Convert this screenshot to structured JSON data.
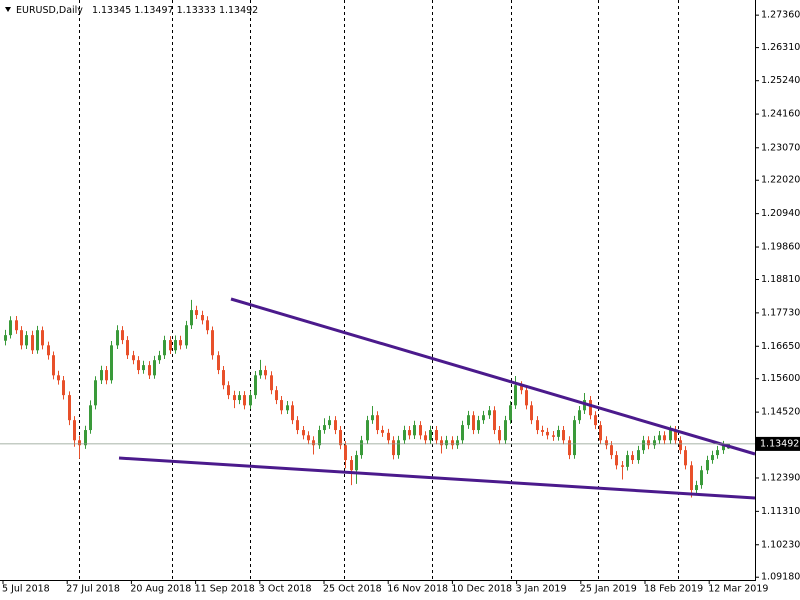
{
  "chart_data": {
    "type": "candlestick",
    "title": "EURUSD,Daily",
    "bull_color": "#3a9a3a",
    "bear_color": "#e8502a",
    "ylim": [
      1.0909,
      1.2785
    ],
    "yticks": [
      {
        "value": 1.2736,
        "label": "1.27360"
      },
      {
        "value": 1.2631,
        "label": "1.26310"
      },
      {
        "value": 1.2524,
        "label": "1.25240"
      },
      {
        "value": 1.2416,
        "label": "1.24160"
      },
      {
        "value": 1.2307,
        "label": "1.23070"
      },
      {
        "value": 1.2202,
        "label": "1.22020"
      },
      {
        "value": 1.2094,
        "label": "1.20940"
      },
      {
        "value": 1.1986,
        "label": "1.19860"
      },
      {
        "value": 1.1881,
        "label": "1.18810"
      },
      {
        "value": 1.1773,
        "label": "1.17730"
      },
      {
        "value": 1.1665,
        "label": "1.16650"
      },
      {
        "value": 1.156,
        "label": "1.15600"
      },
      {
        "value": 1.1452,
        "label": "1.14520"
      },
      {
        "value": 1.1239,
        "label": "1.12390"
      },
      {
        "value": 1.1131,
        "label": "1.11310"
      },
      {
        "value": 1.1023,
        "label": "1.10230"
      },
      {
        "value": 1.0918,
        "label": "1.09180"
      }
    ],
    "xlabels": [
      "5 Jul 2018",
      "27 Jul 2018",
      "20 Aug 2018",
      "11 Sep 2018",
      "3 Oct 2018",
      "25 Oct 2018",
      "16 Nov 2018",
      "10 Dec 2018",
      "3 Jan 2019",
      "25 Jan 2019",
      "18 Feb 2019",
      "12 Mar 2019"
    ],
    "ohlc": [
      [
        1.1683,
        1.1718,
        1.1668,
        1.1701
      ],
      [
        1.1701,
        1.1762,
        1.169,
        1.1749
      ],
      [
        1.1749,
        1.1763,
        1.1705,
        1.1717
      ],
      [
        1.1717,
        1.173,
        1.1655,
        1.1668
      ],
      [
        1.1668,
        1.1714,
        1.1656,
        1.1701
      ],
      [
        1.1701,
        1.1715,
        1.164,
        1.1652
      ],
      [
        1.1652,
        1.1731,
        1.1641,
        1.1717
      ],
      [
        1.1717,
        1.1729,
        1.1655,
        1.1668
      ],
      [
        1.1668,
        1.168,
        1.1622,
        1.1636
      ],
      [
        1.1636,
        1.1648,
        1.1558,
        1.1571
      ],
      [
        1.1571,
        1.1586,
        1.1541,
        1.1555
      ],
      [
        1.1555,
        1.1569,
        1.1493,
        1.1507
      ],
      [
        1.1507,
        1.1519,
        1.141,
        1.1426
      ],
      [
        1.1426,
        1.1439,
        1.134,
        1.1361
      ],
      [
        1.1361,
        1.1376,
        1.1301,
        1.1345
      ],
      [
        1.1345,
        1.1408,
        1.1333,
        1.1394
      ],
      [
        1.1394,
        1.149,
        1.1382,
        1.1474
      ],
      [
        1.1474,
        1.1568,
        1.1461,
        1.1555
      ],
      [
        1.1555,
        1.1602,
        1.1543,
        1.1588
      ],
      [
        1.1588,
        1.1601,
        1.1542,
        1.1555
      ],
      [
        1.1555,
        1.1682,
        1.1544,
        1.1668
      ],
      [
        1.1668,
        1.1733,
        1.1656,
        1.1717
      ],
      [
        1.1717,
        1.173,
        1.1672,
        1.1685
      ],
      [
        1.1685,
        1.1698,
        1.1624,
        1.1636
      ],
      [
        1.1636,
        1.165,
        1.1607,
        1.162
      ],
      [
        1.162,
        1.1633,
        1.1575,
        1.1588
      ],
      [
        1.1588,
        1.1618,
        1.1576,
        1.1604
      ],
      [
        1.1604,
        1.1617,
        1.1559,
        1.1571
      ],
      [
        1.1571,
        1.1634,
        1.156,
        1.162
      ],
      [
        1.162,
        1.165,
        1.1608,
        1.1636
      ],
      [
        1.1636,
        1.1699,
        1.1624,
        1.1685
      ],
      [
        1.1685,
        1.1698,
        1.164,
        1.1652
      ],
      [
        1.1652,
        1.17,
        1.1641,
        1.1685
      ],
      [
        1.1685,
        1.1699,
        1.1655,
        1.1668
      ],
      [
        1.1668,
        1.1747,
        1.1657,
        1.1733
      ],
      [
        1.1733,
        1.1815,
        1.1721,
        1.1782
      ],
      [
        1.1782,
        1.1796,
        1.1753,
        1.1766
      ],
      [
        1.1766,
        1.178,
        1.1736,
        1.1749
      ],
      [
        1.1749,
        1.1762,
        1.1704,
        1.1717
      ],
      [
        1.1717,
        1.1729,
        1.1622,
        1.1636
      ],
      [
        1.1636,
        1.1649,
        1.1575,
        1.1588
      ],
      [
        1.1588,
        1.1601,
        1.1526,
        1.1539
      ],
      [
        1.1539,
        1.1552,
        1.1494,
        1.1507
      ],
      [
        1.1507,
        1.1521,
        1.1465,
        1.1491
      ],
      [
        1.1491,
        1.152,
        1.1478,
        1.1507
      ],
      [
        1.1507,
        1.152,
        1.1461,
        1.1474
      ],
      [
        1.1474,
        1.1521,
        1.1462,
        1.1507
      ],
      [
        1.1507,
        1.1585,
        1.1495,
        1.1571
      ],
      [
        1.1571,
        1.1621,
        1.156,
        1.1588
      ],
      [
        1.1588,
        1.1602,
        1.1558,
        1.1571
      ],
      [
        1.1571,
        1.1584,
        1.151,
        1.1523
      ],
      [
        1.1523,
        1.1536,
        1.1478,
        1.1491
      ],
      [
        1.1491,
        1.1504,
        1.1445,
        1.1458
      ],
      [
        1.1458,
        1.1488,
        1.1446,
        1.1474
      ],
      [
        1.1474,
        1.1487,
        1.1413,
        1.1426
      ],
      [
        1.1426,
        1.1439,
        1.1381,
        1.1394
      ],
      [
        1.1394,
        1.1407,
        1.1364,
        1.1377
      ],
      [
        1.1377,
        1.139,
        1.1348,
        1.1361
      ],
      [
        1.1361,
        1.1374,
        1.1315,
        1.1345
      ],
      [
        1.1345,
        1.1408,
        1.1333,
        1.1394
      ],
      [
        1.1394,
        1.1432,
        1.1382,
        1.141
      ],
      [
        1.141,
        1.144,
        1.1398,
        1.1426
      ],
      [
        1.1426,
        1.1439,
        1.1381,
        1.1394
      ],
      [
        1.1394,
        1.1407,
        1.1332,
        1.1345
      ],
      [
        1.1345,
        1.1358,
        1.127,
        1.1297
      ],
      [
        1.1297,
        1.131,
        1.1216,
        1.1264
      ],
      [
        1.1264,
        1.1327,
        1.122,
        1.1313
      ],
      [
        1.1313,
        1.1375,
        1.1301,
        1.1361
      ],
      [
        1.1361,
        1.144,
        1.1349,
        1.1426
      ],
      [
        1.1426,
        1.1472,
        1.1414,
        1.1442
      ],
      [
        1.1442,
        1.1455,
        1.1381,
        1.1394
      ],
      [
        1.1394,
        1.1408,
        1.1372,
        1.1385
      ],
      [
        1.1385,
        1.1398,
        1.1348,
        1.1361
      ],
      [
        1.1361,
        1.1374,
        1.1299,
        1.1313
      ],
      [
        1.1313,
        1.1375,
        1.1301,
        1.1361
      ],
      [
        1.1361,
        1.1408,
        1.1349,
        1.1394
      ],
      [
        1.1394,
        1.1407,
        1.1364,
        1.1377
      ],
      [
        1.1377,
        1.1424,
        1.1365,
        1.141
      ],
      [
        1.141,
        1.1423,
        1.1364,
        1.1377
      ],
      [
        1.1377,
        1.139,
        1.1348,
        1.1361
      ],
      [
        1.1361,
        1.1408,
        1.1349,
        1.1394
      ],
      [
        1.1394,
        1.1407,
        1.1348,
        1.1361
      ],
      [
        1.1361,
        1.1374,
        1.1318,
        1.1345
      ],
      [
        1.1345,
        1.1375,
        1.1333,
        1.1361
      ],
      [
        1.1361,
        1.1374,
        1.1332,
        1.1345
      ],
      [
        1.1345,
        1.1375,
        1.1333,
        1.1361
      ],
      [
        1.1361,
        1.1424,
        1.1349,
        1.141
      ],
      [
        1.141,
        1.1456,
        1.1398,
        1.1442
      ],
      [
        1.1442,
        1.1455,
        1.1381,
        1.1394
      ],
      [
        1.1394,
        1.144,
        1.1382,
        1.1426
      ],
      [
        1.1426,
        1.1456,
        1.1414,
        1.1442
      ],
      [
        1.1442,
        1.1472,
        1.143,
        1.1458
      ],
      [
        1.1458,
        1.1471,
        1.1381,
        1.1394
      ],
      [
        1.1394,
        1.1407,
        1.1348,
        1.1361
      ],
      [
        1.1361,
        1.144,
        1.1349,
        1.1426
      ],
      [
        1.1426,
        1.1488,
        1.1414,
        1.1474
      ],
      [
        1.1474,
        1.1569,
        1.1462,
        1.1539
      ],
      [
        1.1539,
        1.1552,
        1.151,
        1.1523
      ],
      [
        1.1523,
        1.1536,
        1.1461,
        1.1474
      ],
      [
        1.1474,
        1.1487,
        1.1413,
        1.1426
      ],
      [
        1.1426,
        1.1439,
        1.1381,
        1.1394
      ],
      [
        1.1394,
        1.1408,
        1.1375,
        1.1388
      ],
      [
        1.1388,
        1.1401,
        1.1364,
        1.1377
      ],
      [
        1.1377,
        1.1391,
        1.1359,
        1.1372
      ],
      [
        1.1372,
        1.1408,
        1.136,
        1.1394
      ],
      [
        1.1394,
        1.1407,
        1.1348,
        1.1361
      ],
      [
        1.1361,
        1.1374,
        1.13,
        1.1313
      ],
      [
        1.1313,
        1.144,
        1.1301,
        1.1426
      ],
      [
        1.1426,
        1.1472,
        1.1414,
        1.1458
      ],
      [
        1.1458,
        1.1514,
        1.1446,
        1.1491
      ],
      [
        1.1491,
        1.1504,
        1.1429,
        1.1442
      ],
      [
        1.1442,
        1.1455,
        1.1397,
        1.141
      ],
      [
        1.141,
        1.1423,
        1.1348,
        1.1361
      ],
      [
        1.1361,
        1.1374,
        1.1332,
        1.1345
      ],
      [
        1.1345,
        1.1358,
        1.13,
        1.1313
      ],
      [
        1.1313,
        1.1326,
        1.1267,
        1.128
      ],
      [
        1.128,
        1.1294,
        1.1234,
        1.1275
      ],
      [
        1.1275,
        1.1327,
        1.1263,
        1.1313
      ],
      [
        1.1313,
        1.1326,
        1.1284,
        1.1297
      ],
      [
        1.1297,
        1.1343,
        1.1285,
        1.1329
      ],
      [
        1.1329,
        1.1375,
        1.1317,
        1.1361
      ],
      [
        1.1361,
        1.1374,
        1.1332,
        1.1345
      ],
      [
        1.1345,
        1.1375,
        1.1333,
        1.1361
      ],
      [
        1.1361,
        1.1391,
        1.1349,
        1.1377
      ],
      [
        1.1377,
        1.139,
        1.1348,
        1.1361
      ],
      [
        1.1361,
        1.1408,
        1.1349,
        1.1394
      ],
      [
        1.1394,
        1.1407,
        1.1348,
        1.1361
      ],
      [
        1.1361,
        1.1374,
        1.1316,
        1.1329
      ],
      [
        1.1329,
        1.1342,
        1.1267,
        1.128
      ],
      [
        1.128,
        1.1293,
        1.1176,
        1.12
      ],
      [
        1.12,
        1.123,
        1.1188,
        1.1216
      ],
      [
        1.1216,
        1.1278,
        1.1204,
        1.1264
      ],
      [
        1.1264,
        1.1311,
        1.1252,
        1.1297
      ],
      [
        1.1297,
        1.1327,
        1.1285,
        1.1313
      ],
      [
        1.1313,
        1.1343,
        1.1301,
        1.1329
      ],
      [
        1.1329,
        1.1359,
        1.1317,
        1.1345
      ],
      [
        1.13345,
        1.13497,
        1.13333,
        1.13492
      ]
    ]
  }
}
